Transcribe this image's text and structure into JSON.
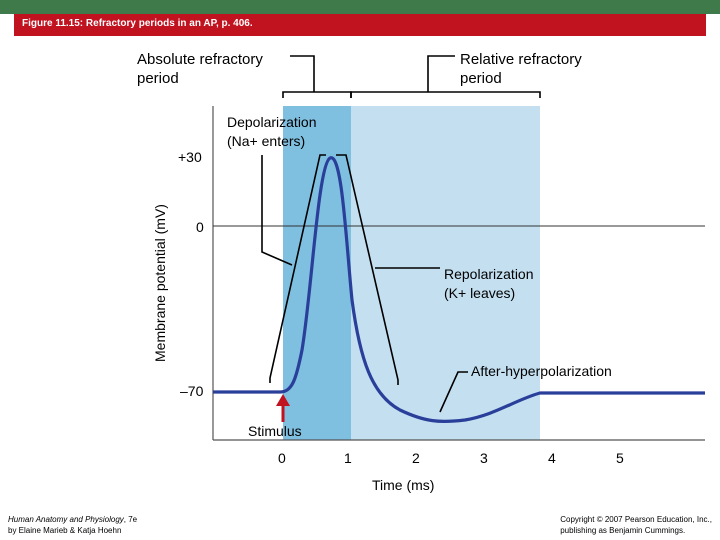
{
  "header": {
    "title": "Figure 11.15: Refractory periods in an AP, p. 406."
  },
  "labels": {
    "absolute_line1": "Absolute refractory",
    "absolute_line2": "period",
    "relative_line1": "Relative refractory",
    "relative_line2": "period",
    "depol_line1": "Depolarization",
    "depol_line2": "(Na+ enters)",
    "repol_line1": "Repolarization",
    "repol_line2": "(K+ leaves)",
    "after": "After-hyperpolarization",
    "stimulus": "Stimulus"
  },
  "axes": {
    "ylabel": "Membrane potential (mV)",
    "xlabel": "Time (ms)",
    "yticks": [
      "+30",
      "0",
      "–70"
    ],
    "xticks": [
      "0",
      "1",
      "2",
      "3",
      "4",
      "5"
    ]
  },
  "footer": {
    "left_line1_italic": "Human Anatomy and Physiology",
    "left_line1_rest": ", 7e",
    "left_line2": "by Elaine Marieb & Katja Hoehn",
    "right_line1": "Copyright © 2007 Pearson Education, Inc.,",
    "right_line2": "publishing as Benjamin Cummings."
  },
  "colors": {
    "title_bar": "#c1121f",
    "top_strip": "#3f7a4a",
    "curve": "#2a3f9a",
    "absolute_shade": "#7fbfe0",
    "relative_shade": "#c3dff0"
  }
}
